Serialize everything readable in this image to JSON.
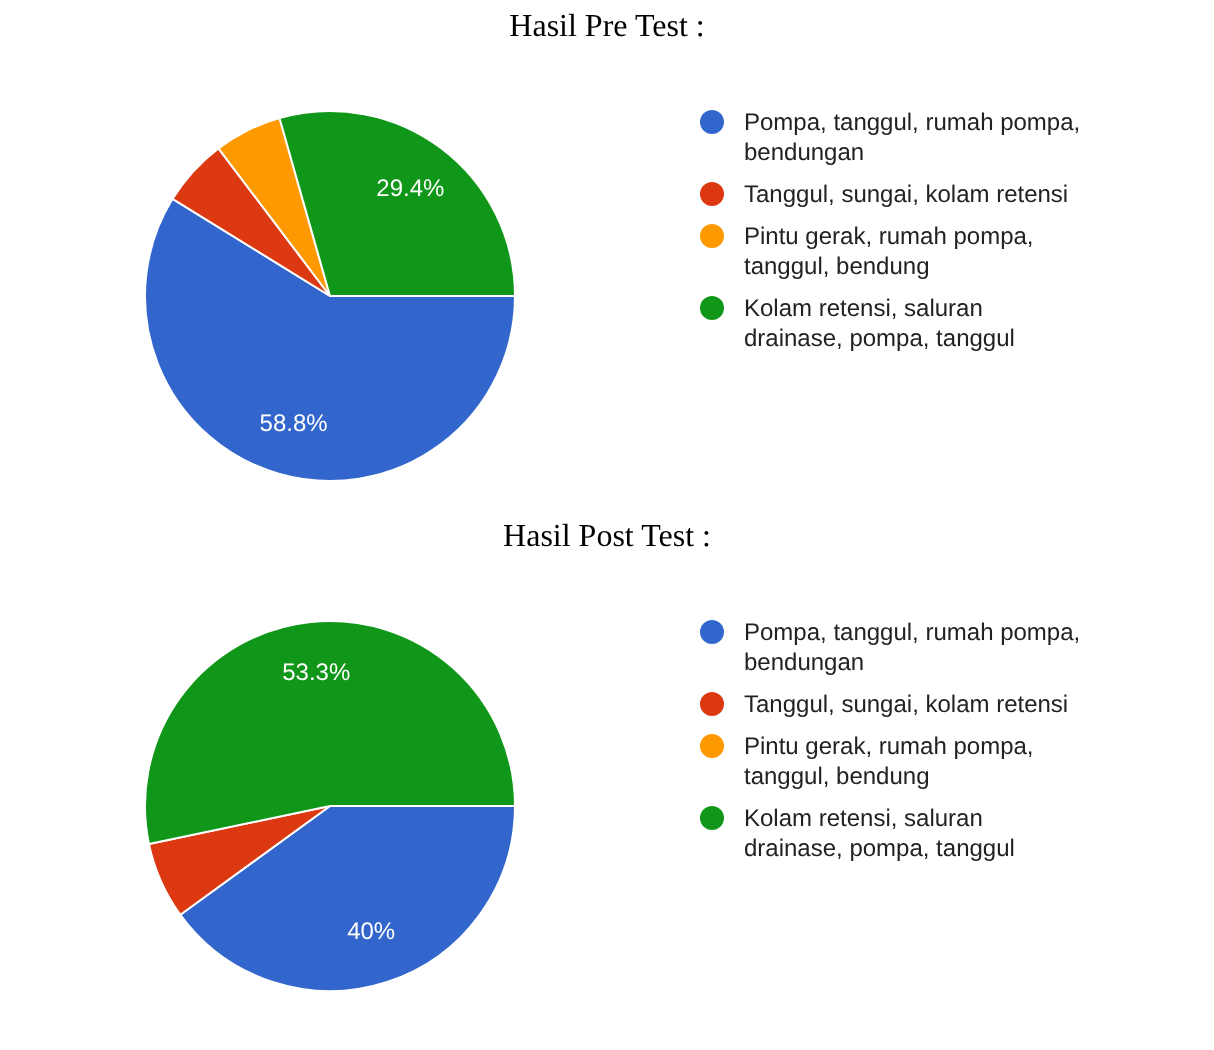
{
  "chart_data": [
    {
      "type": "pie",
      "title": "Hasil Pre Test :",
      "categories": [
        "Pompa, tanggul, rumah pompa, bendungan",
        "Tanggul, sungai, kolam retensi",
        "Pintu gerak, rumah pompa, tanggul, bendung",
        "Kolam retensi, saluran drainase, pompa, tanggul"
      ],
      "values": [
        58.8,
        5.9,
        5.9,
        29.4
      ],
      "colors": [
        "#3366cc",
        "#dc3912",
        "#ff9900",
        "#109618"
      ],
      "value_labels": [
        "58.8%",
        null,
        null,
        "29.4%"
      ],
      "legend": "right"
    },
    {
      "type": "pie",
      "title": "Hasil Post Test :",
      "categories": [
        "Pompa, tanggul, rumah pompa, bendungan",
        "Tanggul, sungai, kolam retensi",
        "Pintu gerak, rumah pompa, tanggul, bendung",
        "Kolam retensi, saluran drainase, pompa, tanggul"
      ],
      "values": [
        40,
        6.7,
        0,
        53.3
      ],
      "colors": [
        "#3366cc",
        "#dc3912",
        "#ff9900",
        "#109618"
      ],
      "value_labels": [
        "40%",
        null,
        null,
        "53.3%"
      ],
      "legend": "right"
    }
  ]
}
